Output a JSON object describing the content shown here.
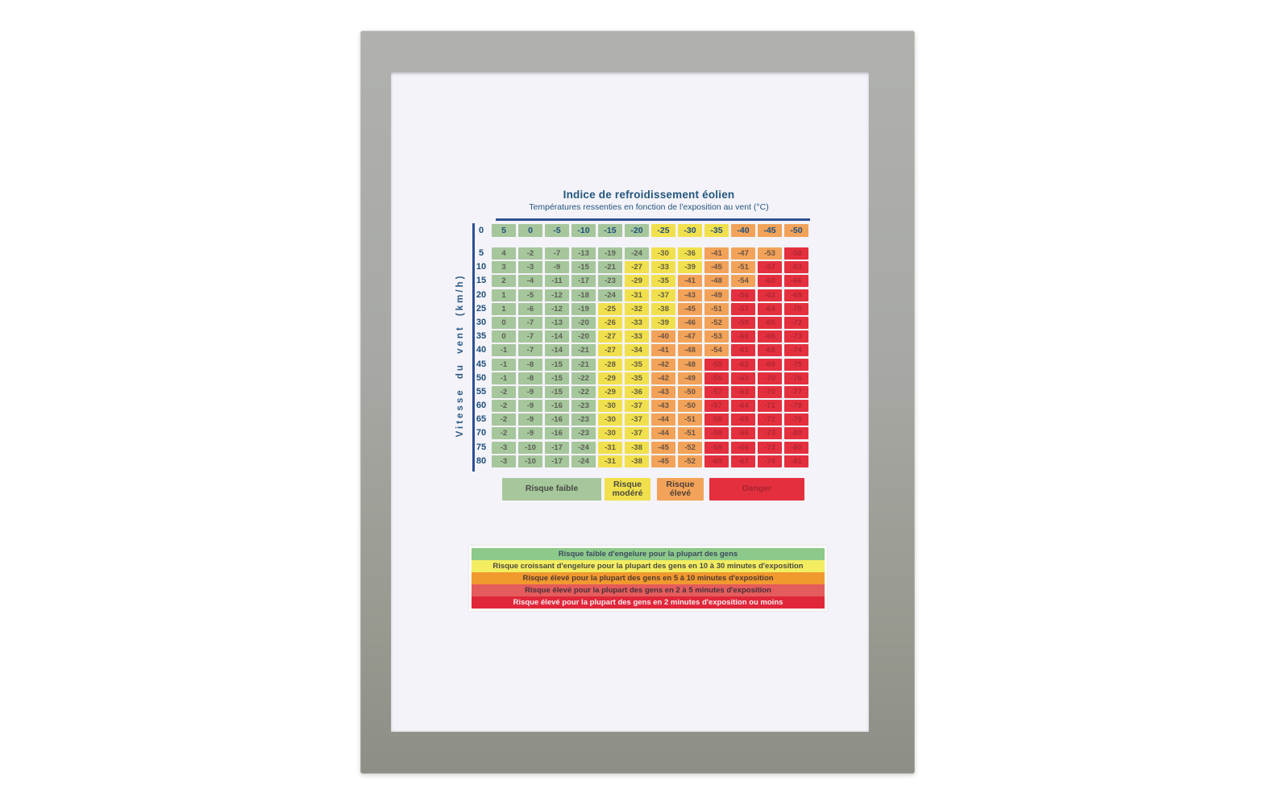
{
  "header": {
    "title": "Indice de refroidissement éolien",
    "subtitle": "Températures ressenties en fonction de l'exposition au vent (°C)"
  },
  "colors": {
    "paper": "#f4f3f9",
    "frame_gray": "#a7a8a4",
    "navy_text": "#1d4f7c",
    "rule_blue": "#2e4f93"
  },
  "chart_data": {
    "type": "heatmap",
    "title": "Indice de refroidissement éolien",
    "subtitle": "Températures ressenties en fonction de l'exposition au vent (°C)",
    "ylabel": "Vitesse du vent (km/h)",
    "temperature_columns_c": [
      5,
      0,
      -5,
      -10,
      -15,
      -20,
      -25,
      -30,
      -35,
      -40,
      -45,
      -50
    ],
    "rows": [
      {
        "wind_speed": 0,
        "is_header": true,
        "values": [
          5,
          0,
          -5,
          -10,
          -15,
          -20,
          -25,
          -30,
          -35,
          -40,
          -45,
          -50
        ]
      },
      {
        "wind_speed": 5,
        "values": [
          4,
          -2,
          -7,
          -13,
          -19,
          -24,
          -30,
          -36,
          -41,
          -47,
          -53,
          -58
        ]
      },
      {
        "wind_speed": 10,
        "values": [
          3,
          -3,
          -9,
          -15,
          -21,
          -27,
          -33,
          -39,
          -45,
          -51,
          -57,
          -63
        ]
      },
      {
        "wind_speed": 15,
        "values": [
          2,
          -4,
          -11,
          -17,
          -23,
          -29,
          -35,
          -41,
          -48,
          -54,
          -60,
          -66
        ]
      },
      {
        "wind_speed": 20,
        "values": [
          1,
          -5,
          -12,
          -18,
          -24,
          -31,
          -37,
          -43,
          -49,
          -56,
          -62,
          -68
        ]
      },
      {
        "wind_speed": 25,
        "values": [
          1,
          -6,
          -12,
          -19,
          -25,
          -32,
          -38,
          -45,
          -51,
          -57,
          -64,
          -70
        ]
      },
      {
        "wind_speed": 30,
        "values": [
          0,
          -7,
          -13,
          -20,
          -26,
          -33,
          -39,
          -46,
          -52,
          -59,
          -65,
          -72
        ]
      },
      {
        "wind_speed": 35,
        "values": [
          0,
          -7,
          -14,
          -20,
          -27,
          -33,
          -40,
          -47,
          -53,
          -60,
          -66,
          -73
        ]
      },
      {
        "wind_speed": 40,
        "values": [
          -1,
          -7,
          -14,
          -21,
          -27,
          -34,
          -41,
          -48,
          -54,
          -61,
          -68,
          -74
        ]
      },
      {
        "wind_speed": 45,
        "values": [
          -1,
          -8,
          -15,
          -21,
          -28,
          -35,
          -42,
          -48,
          -55,
          -62,
          -69,
          -75
        ]
      },
      {
        "wind_speed": 50,
        "values": [
          -1,
          -8,
          -15,
          -22,
          -29,
          -35,
          -42,
          -49,
          -56,
          -63,
          -70,
          -76
        ]
      },
      {
        "wind_speed": 55,
        "values": [
          -2,
          -9,
          -15,
          -22,
          -29,
          -36,
          -43,
          -50,
          -57,
          -63,
          -70,
          -77
        ]
      },
      {
        "wind_speed": 60,
        "values": [
          -2,
          -9,
          -16,
          -23,
          -30,
          -37,
          -43,
          -50,
          -57,
          -64,
          -71,
          -78
        ]
      },
      {
        "wind_speed": 65,
        "values": [
          -2,
          -9,
          -16,
          -23,
          -30,
          -37,
          -44,
          -51,
          -58,
          -65,
          -72,
          -79
        ]
      },
      {
        "wind_speed": 70,
        "values": [
          -2,
          -9,
          -16,
          -23,
          -30,
          -37,
          -44,
          -51,
          -59,
          -66,
          -73,
          -80
        ]
      },
      {
        "wind_speed": 75,
        "values": [
          -3,
          -10,
          -17,
          -24,
          -31,
          -38,
          -45,
          -52,
          -59,
          -66,
          -73,
          -80
        ]
      },
      {
        "wind_speed": 80,
        "values": [
          -3,
          -10,
          -17,
          -24,
          -31,
          -38,
          -45,
          -52,
          -60,
          -67,
          -74,
          -81
        ]
      }
    ],
    "risk_bands": [
      {
        "label": "Risque faible",
        "min_value": -24,
        "color": "#a6c69c",
        "text_color": "#5c6055"
      },
      {
        "label": "Risque modéré",
        "min_value": -39,
        "color": "#f1e04d",
        "text_color": "#625c41"
      },
      {
        "label": "Risque élevé",
        "min_value": -54,
        "color": "#f2a359",
        "text_color": "#6b5244"
      },
      {
        "label": "Danger",
        "min_value": null,
        "color": "#e4303e",
        "text_color": "#b22633"
      }
    ]
  },
  "legend": {
    "items": [
      {
        "label": "Risque faible",
        "color": "#a6c69c",
        "text_color": "#474b42"
      },
      {
        "label": "Risque modéré",
        "color": "#f1e04d",
        "text_color": "#4a4a40"
      },
      {
        "label": "Risque élevé",
        "color": "#f2a359",
        "text_color": "#4f4038"
      },
      {
        "label": "Danger",
        "color": "#e4303e",
        "text_color": "#a8242f"
      }
    ]
  },
  "risk_strip": {
    "rows": [
      {
        "text": "Risque faible d'engelure pour la plupart des gens",
        "color": "#8cc98a",
        "text_color": "#3c4a5e"
      },
      {
        "text": "Risque croissant d'engelure pour la plupart des gens en 10 à 30 minutes d'exposition",
        "color": "#f3ed62",
        "text_color": "#4a4a3e"
      },
      {
        "text": "Risque élevé pour la plupart des gens en 5 à 10 minutes d'exposition",
        "color": "#f0992f",
        "text_color": "#4f3a30"
      },
      {
        "text": "Risque élevé pour la plupart des gens en 2 à 5 minutes d'exposition",
        "color": "#e55c5c",
        "text_color": "#44303a"
      },
      {
        "text": "Risque élevé pour la plupart des gens en 2 minutes d'exposition ou moins",
        "color": "#e0273a",
        "text_color": "#f7eaee"
      }
    ]
  }
}
